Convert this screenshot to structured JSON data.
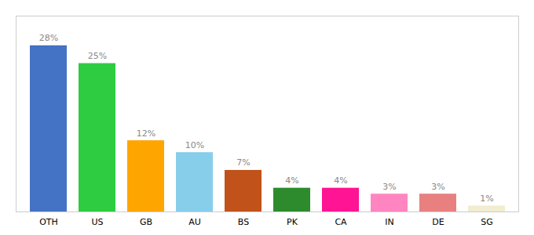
{
  "chart_data": {
    "type": "bar",
    "categories": [
      "OTH",
      "US",
      "GB",
      "AU",
      "BS",
      "PK",
      "CA",
      "IN",
      "DE",
      "SG"
    ],
    "values": [
      28,
      25,
      12,
      10,
      7,
      4,
      4,
      3,
      3,
      1
    ],
    "value_labels": [
      "28%",
      "25%",
      "12%",
      "10%",
      "7%",
      "4%",
      "4%",
      "3%",
      "3%",
      "1%"
    ],
    "colors": [
      "#4472C4",
      "#2ECC40",
      "#FFA500",
      "#87CEEB",
      "#C0521A",
      "#2D8B2D",
      "#FF1493",
      "#FF85C0",
      "#E88080",
      "#F0EDD0"
    ],
    "ylim": [
      0,
      33
    ],
    "yticks": [],
    "grid": false,
    "data_labels": true,
    "tick_labels": "x"
  }
}
